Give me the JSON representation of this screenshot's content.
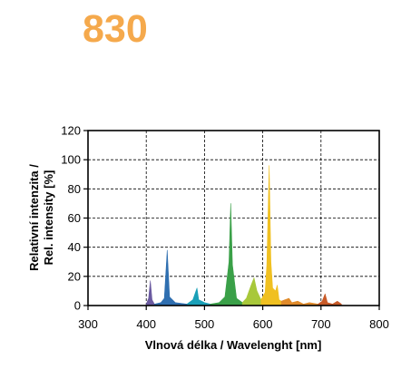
{
  "title": "830",
  "colors": {
    "title": "#f5a94c",
    "violet": "#6a5aa0",
    "blue": "#2f6fb0",
    "cyan": "#1aa0b8",
    "green": "#3aa048",
    "yellow_green": "#a8c83a",
    "yellow": "#f0c020",
    "orange": "#e08a2a",
    "red_orange": "#c85a28"
  },
  "chart_data": {
    "type": "area",
    "xlabel": "Vlnová délka / Wavelenght [nm]",
    "ylabel_line1": "Relativní intenzita /",
    "ylabel_line2": "Rel. intensity [%]",
    "xlim": [
      300,
      800
    ],
    "ylim": [
      0,
      120
    ],
    "x_ticks": [
      300,
      400,
      500,
      600,
      700,
      800
    ],
    "y_ticks": [
      0,
      20,
      40,
      60,
      80,
      100,
      120
    ],
    "grid": "dashed",
    "series": [
      {
        "color_key": "violet",
        "points": [
          [
            400,
            1
          ],
          [
            404,
            5
          ],
          [
            407,
            17
          ],
          [
            410,
            4
          ],
          [
            414,
            1
          ]
        ]
      },
      {
        "color_key": "blue",
        "points": [
          [
            414,
            1
          ],
          [
            425,
            2
          ],
          [
            431,
            5
          ],
          [
            436,
            38
          ],
          [
            440,
            6
          ],
          [
            450,
            2
          ],
          [
            470,
            1
          ]
        ]
      },
      {
        "color_key": "cyan",
        "points": [
          [
            470,
            1
          ],
          [
            480,
            4
          ],
          [
            487,
            12
          ],
          [
            490,
            4
          ],
          [
            495,
            3
          ],
          [
            500,
            2
          ],
          [
            510,
            1
          ]
        ]
      },
      {
        "color_key": "green",
        "points": [
          [
            510,
            1
          ],
          [
            525,
            2
          ],
          [
            535,
            6
          ],
          [
            542,
            30
          ],
          [
            545,
            70
          ],
          [
            548,
            28
          ],
          [
            555,
            5
          ],
          [
            565,
            2
          ]
        ]
      },
      {
        "color_key": "yellow_green",
        "points": [
          [
            565,
            2
          ],
          [
            572,
            5
          ],
          [
            580,
            14
          ],
          [
            585,
            19
          ],
          [
            590,
            10
          ],
          [
            597,
            4
          ]
        ]
      },
      {
        "color_key": "yellow",
        "points": [
          [
            597,
            4
          ],
          [
            604,
            9
          ],
          [
            607,
            28
          ],
          [
            611,
            96
          ],
          [
            614,
            30
          ],
          [
            617,
            12
          ],
          [
            622,
            10
          ],
          [
            625,
            14
          ],
          [
            628,
            4
          ],
          [
            632,
            3
          ]
        ]
      },
      {
        "color_key": "orange",
        "points": [
          [
            632,
            3
          ],
          [
            638,
            4
          ],
          [
            645,
            5
          ],
          [
            650,
            2
          ],
          [
            660,
            3
          ],
          [
            670,
            1
          ],
          [
            680,
            2
          ],
          [
            695,
            1
          ]
        ]
      },
      {
        "color_key": "red_orange",
        "points": [
          [
            695,
            1
          ],
          [
            702,
            3
          ],
          [
            707,
            8
          ],
          [
            711,
            2
          ],
          [
            720,
            1
          ],
          [
            728,
            3
          ],
          [
            735,
            1
          ]
        ]
      }
    ]
  }
}
